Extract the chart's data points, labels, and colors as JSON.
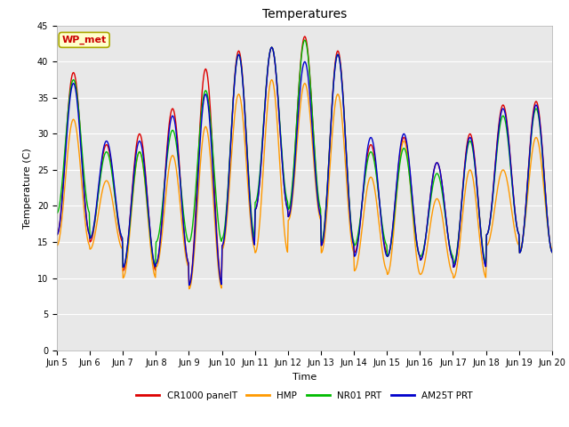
{
  "title": "Temperatures",
  "xlabel": "Time",
  "ylabel": "Temperature (C)",
  "ylim": [
    0,
    45
  ],
  "yticks": [
    0,
    5,
    10,
    15,
    20,
    25,
    30,
    35,
    40,
    45
  ],
  "annotation_text": "WP_met",
  "annotation_color": "#cc0000",
  "annotation_bg": "#ffffcc",
  "annotation_border": "#aaa800",
  "fig_bg": "#ffffff",
  "plot_bg": "#e8e8e8",
  "legend_labels": [
    "CR1000 panelT",
    "HMP",
    "NR01 PRT",
    "AM25T PRT"
  ],
  "legend_colors": [
    "#dd0000",
    "#ff9900",
    "#00bb00",
    "#0000cc"
  ],
  "title_fontsize": 10,
  "axis_fontsize": 8,
  "tick_fontsize": 7,
  "x_tick_labels": [
    "Jun 5",
    "Jun 6",
    "Jun 7",
    "Jun 8",
    "Jun 9",
    "Jun 10",
    "Jun 11",
    "Jun 12",
    "Jun 13",
    "Jun 14",
    "Jun 15",
    "Jun 16",
    "Jun 17",
    "Jun 18",
    "Jun 19",
    "Jun 20"
  ],
  "num_days": 15,
  "points_per_day": 48,
  "day_peaks_cr1000": [
    38.5,
    28.5,
    30.0,
    33.5,
    39.0,
    41.5,
    42.0,
    43.5,
    41.5,
    28.5,
    29.5,
    26.0,
    30.0,
    34.0,
    34.5
  ],
  "day_troughs_cr1000": [
    16.0,
    15.0,
    11.0,
    12.0,
    9.0,
    14.5,
    19.5,
    18.5,
    14.5,
    13.5,
    13.0,
    12.5,
    11.5,
    16.0,
    13.5
  ],
  "day_peaks_hmp": [
    32.0,
    23.5,
    27.5,
    27.0,
    31.0,
    35.5,
    37.5,
    37.0,
    35.5,
    24.0,
    29.0,
    21.0,
    25.0,
    25.0,
    29.5
  ],
  "day_troughs_hmp": [
    14.5,
    14.0,
    10.0,
    11.5,
    8.5,
    14.0,
    13.5,
    18.0,
    13.5,
    11.0,
    10.5,
    10.5,
    10.0,
    14.5,
    14.0
  ],
  "day_peaks_nr01": [
    37.5,
    27.5,
    27.5,
    30.5,
    36.0,
    41.0,
    42.0,
    43.0,
    41.0,
    27.5,
    28.0,
    24.5,
    29.0,
    32.5,
    33.5
  ],
  "day_troughs_nr01": [
    19.0,
    15.5,
    11.5,
    15.0,
    15.0,
    15.5,
    20.5,
    19.5,
    15.0,
    14.5,
    13.0,
    13.0,
    12.0,
    16.0,
    13.5
  ],
  "day_peaks_am25t": [
    37.0,
    29.0,
    29.0,
    32.5,
    35.5,
    41.0,
    42.0,
    40.0,
    41.0,
    29.5,
    30.0,
    26.0,
    29.5,
    33.5,
    34.0
  ],
  "day_troughs_am25t": [
    16.0,
    15.5,
    11.5,
    12.0,
    9.0,
    14.5,
    19.5,
    18.5,
    14.5,
    13.0,
    13.0,
    12.5,
    11.5,
    16.0,
    13.5
  ]
}
